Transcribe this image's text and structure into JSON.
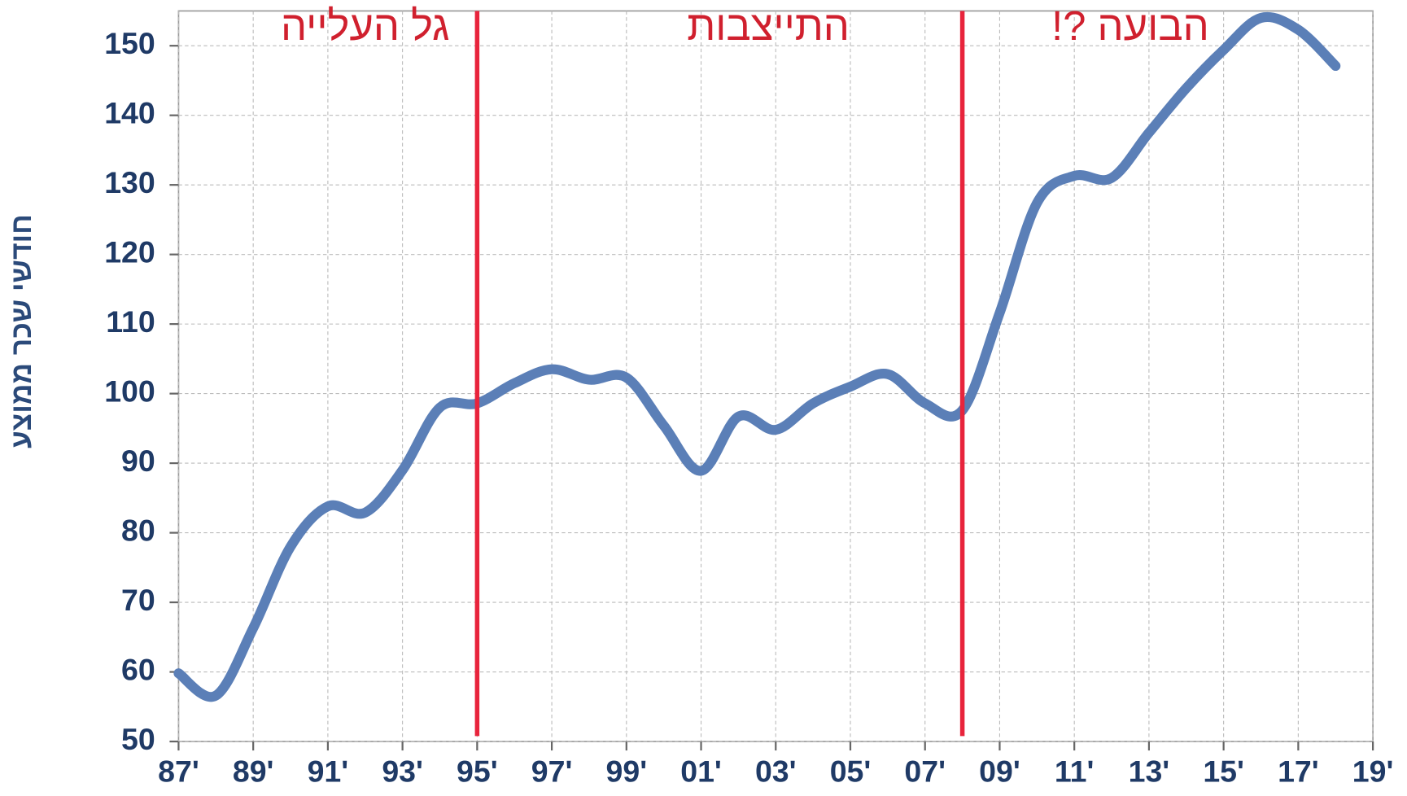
{
  "chart_data": {
    "type": "line",
    "ylabel": "חודשי שכר ממוצע",
    "x": [
      1987,
      1988,
      1989,
      1990,
      1991,
      1992,
      1993,
      1994,
      1995,
      1996,
      1997,
      1998,
      1999,
      2000,
      2001,
      2002,
      2003,
      2004,
      2005,
      2006,
      2007,
      2008,
      2009,
      2010,
      2011,
      2012,
      2013,
      2014,
      2015,
      2016,
      2017,
      2018
    ],
    "series": [
      {
        "color": "#5b7fb7",
        "values": [
          59.8,
          56.6,
          66.3,
          78,
          83.8,
          82.9,
          89,
          98,
          98.6,
          101.5,
          103.5,
          102,
          102.3,
          95.4,
          88.9,
          96.7,
          94.8,
          98.6,
          101,
          102.8,
          98.6,
          97.6,
          111.6,
          127.4,
          131.3,
          131,
          137.5,
          143.9,
          149.4,
          154,
          152.3,
          147.1
        ]
      }
    ],
    "xlim": [
      1987,
      2019
    ],
    "xticks": [
      {
        "value": 1987,
        "label": "87'"
      },
      {
        "value": 1989,
        "label": "89'"
      },
      {
        "value": 1991,
        "label": "91'"
      },
      {
        "value": 1993,
        "label": "93'"
      },
      {
        "value": 1995,
        "label": "95'"
      },
      {
        "value": 1997,
        "label": "97'"
      },
      {
        "value": 1999,
        "label": "99'"
      },
      {
        "value": 2001,
        "label": "01'"
      },
      {
        "value": 2003,
        "label": "03'"
      },
      {
        "value": 2005,
        "label": "05'"
      },
      {
        "value": 2007,
        "label": "07'"
      },
      {
        "value": 2009,
        "label": "09'"
      },
      {
        "value": 2011,
        "label": "11'"
      },
      {
        "value": 2013,
        "label": "13'"
      },
      {
        "value": 2015,
        "label": "15'"
      },
      {
        "value": 2017,
        "label": "17'"
      },
      {
        "value": 2019,
        "label": "19'"
      }
    ],
    "ylim": [
      50,
      155
    ],
    "yticks": [
      50,
      60,
      70,
      80,
      90,
      100,
      110,
      120,
      130,
      140,
      150
    ],
    "grid": true,
    "vlines": {
      "color": "#e8243c",
      "x": [
        1995,
        2008
      ]
    },
    "annotations": [
      {
        "text": "גל העלייה",
        "x": 1992
      },
      {
        "text": "התייצבות",
        "x": 2002.8
      },
      {
        "text": "הבועה ?!",
        "x": 2012.5
      }
    ]
  }
}
